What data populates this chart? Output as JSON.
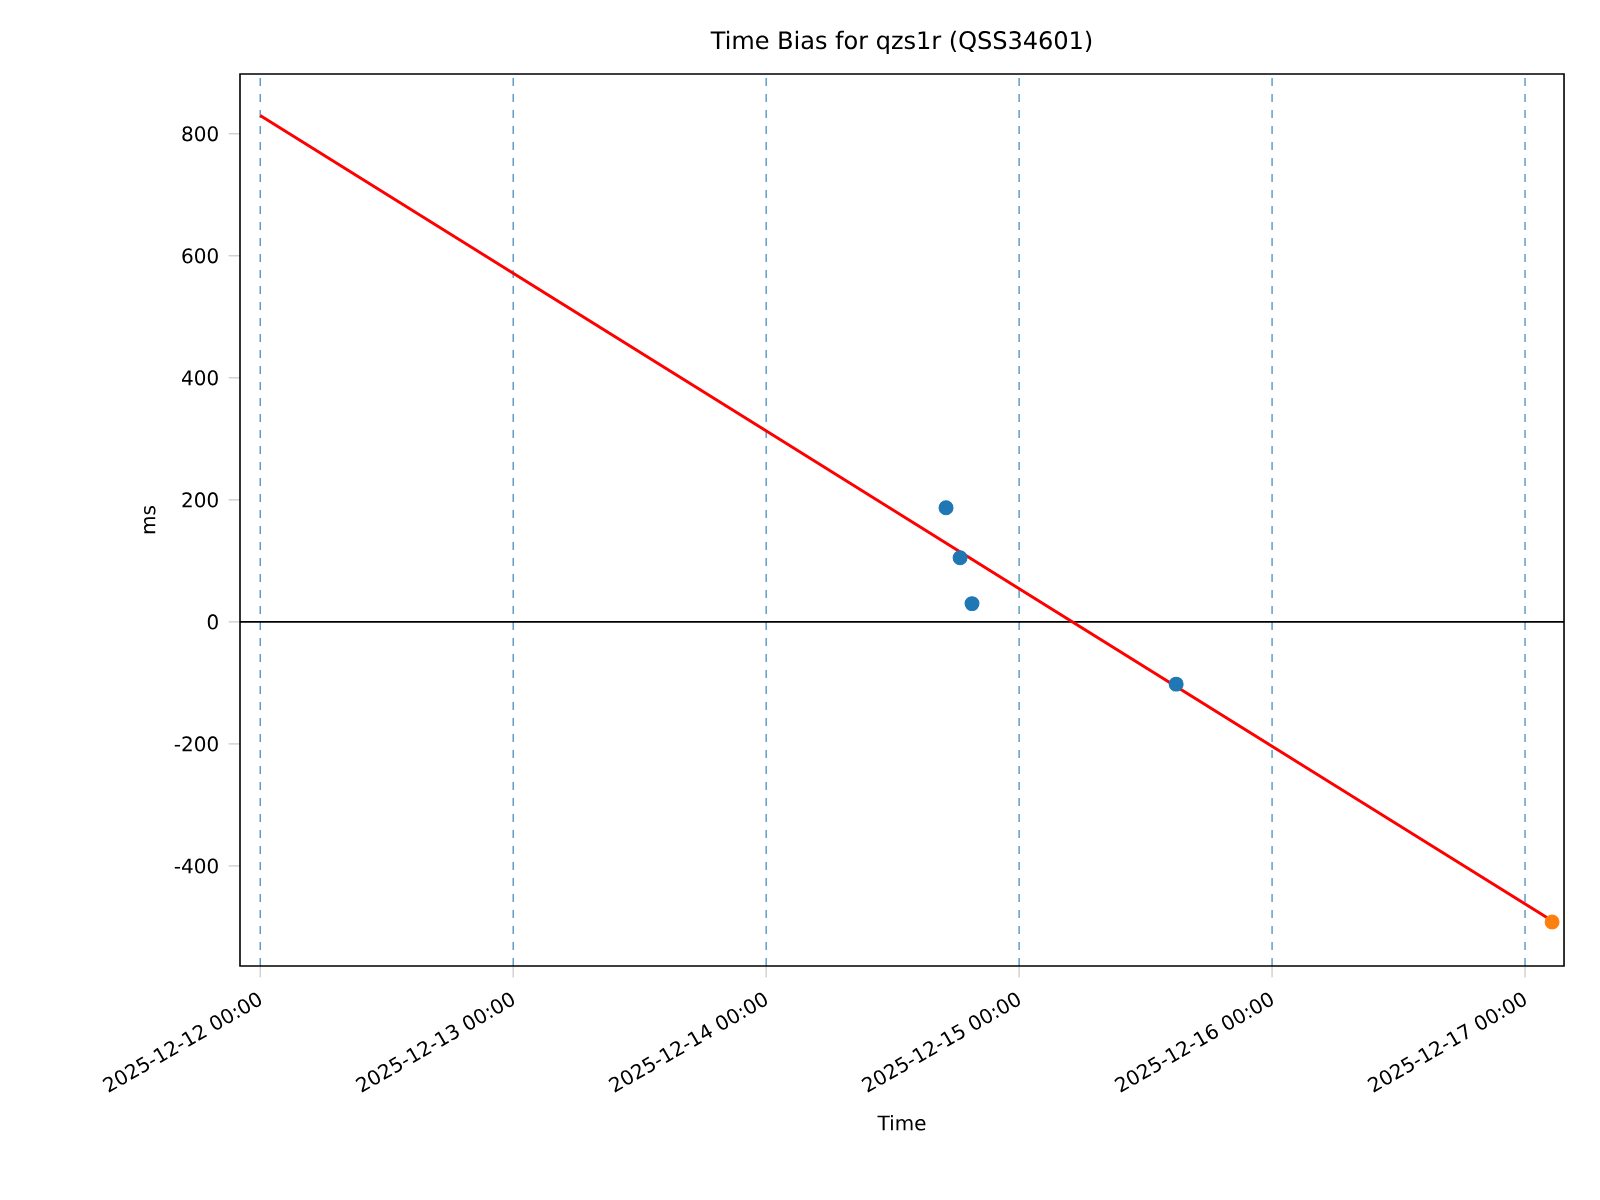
{
  "chart_data": {
    "type": "scatter",
    "title": "Time Bias for qzs1r (QSS34601)",
    "xlabel": "Time",
    "ylabel": "ms",
    "xlim": [
      "2025-12-11T22:05",
      "2025-12-17T03:42"
    ],
    "xticks": [
      {
        "value": "2025-12-12T00:00",
        "label": "2025-12-12 00:00"
      },
      {
        "value": "2025-12-13T00:00",
        "label": "2025-12-13 00:00"
      },
      {
        "value": "2025-12-14T00:00",
        "label": "2025-12-14 00:00"
      },
      {
        "value": "2025-12-15T00:00",
        "label": "2025-12-15 00:00"
      },
      {
        "value": "2025-12-16T00:00",
        "label": "2025-12-16 00:00"
      },
      {
        "value": "2025-12-17T00:00",
        "label": "2025-12-17 00:00"
      }
    ],
    "ylim": [
      -564,
      898
    ],
    "yticks": [
      -400,
      -200,
      0,
      200,
      400,
      600,
      800
    ],
    "grid": "x",
    "ref_lines": [
      {
        "axis": "y",
        "value": 0,
        "color": "#000000"
      }
    ],
    "series": [
      {
        "marker": "circle",
        "color": "#1f77b4",
        "x": [
          "2025-12-14T17:04",
          "2025-12-14T18:24",
          "2025-12-14T19:32",
          "2025-12-15T14:54"
        ],
        "values": [
          187,
          105,
          30,
          -102
        ]
      },
      {
        "marker": "circle",
        "color": "#ff7f0e",
        "x": [
          "2025-12-17T02:34"
        ],
        "values": [
          -492
        ]
      },
      {
        "type": "line",
        "color": "#ff0000",
        "x": [
          "2025-12-12T00:00",
          "2025-12-17T02:34"
        ],
        "values": [
          830,
          -490
        ]
      }
    ]
  }
}
